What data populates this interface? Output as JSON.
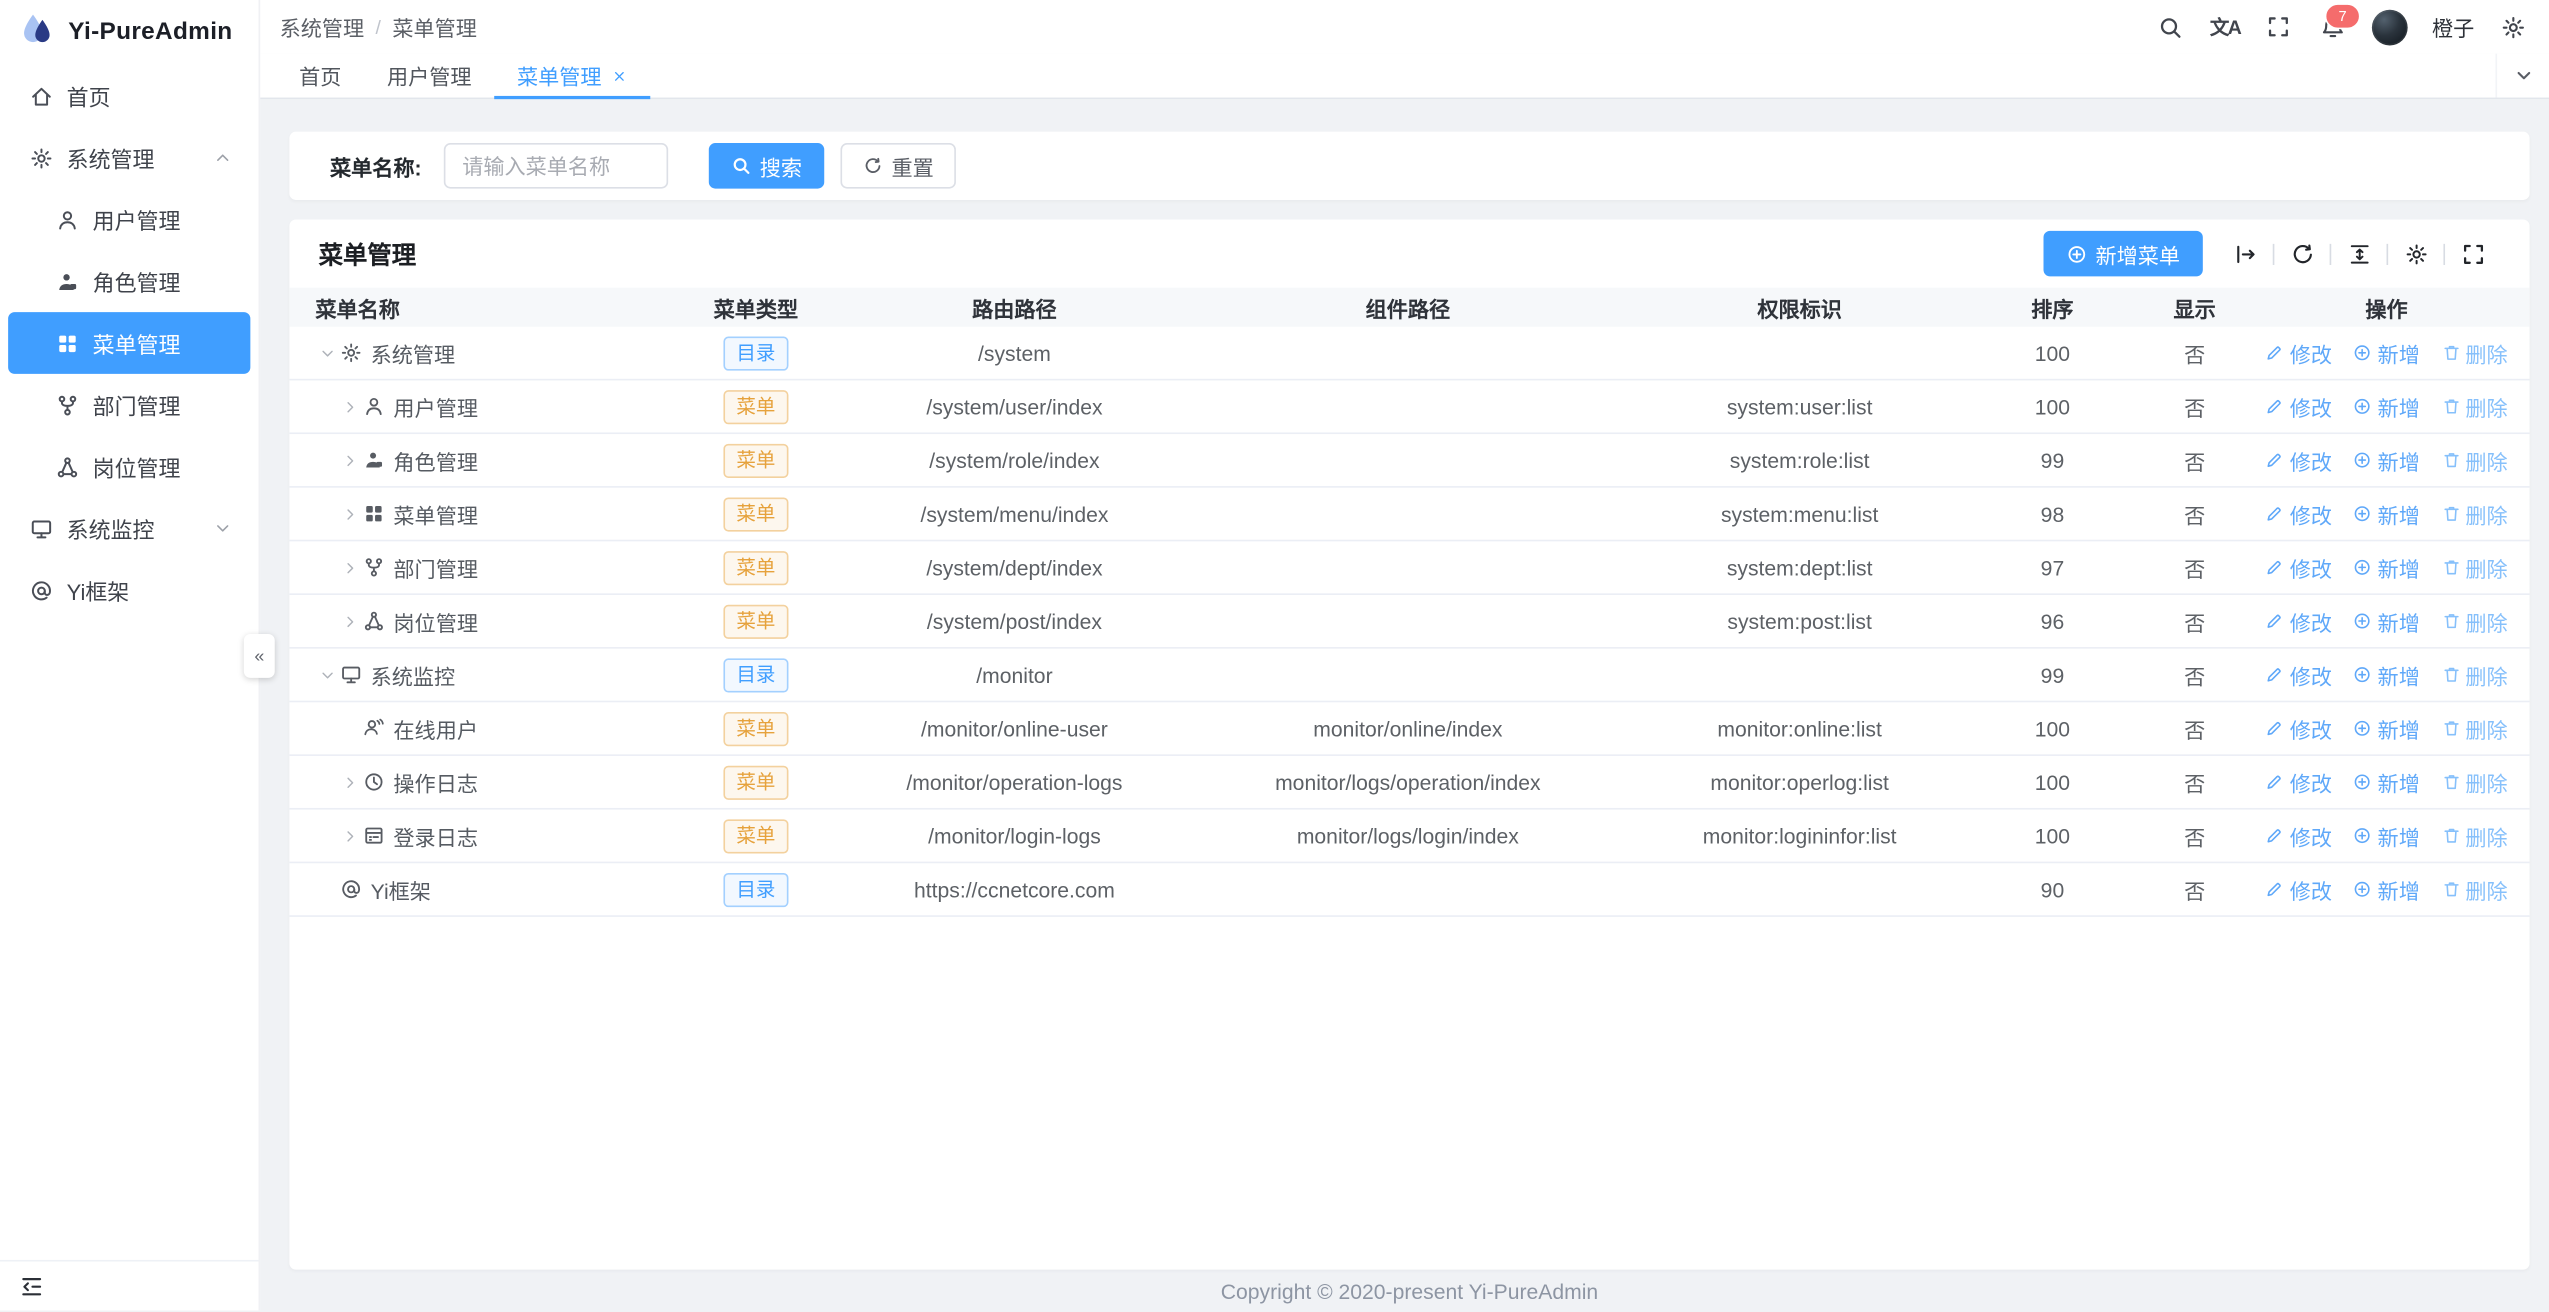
{
  "app": {
    "title": "Yi-PureAdmin"
  },
  "colors": {
    "primary": "#409eff",
    "warning": "#e6a23c",
    "badge_red": "#f56c6c",
    "content_bg": "#f0f2f5",
    "sidebar_active_bg": "#409eff"
  },
  "sidebar": {
    "items": [
      {
        "key": "home",
        "label": "首页",
        "icon": "home-icon",
        "level": 0
      },
      {
        "key": "system-mgmt",
        "label": "系统管理",
        "icon": "gear-icon",
        "level": 0,
        "chevron": "up"
      },
      {
        "key": "user-mgmt",
        "label": "用户管理",
        "icon": "user-icon",
        "level": 1
      },
      {
        "key": "role-mgmt",
        "label": "角色管理",
        "icon": "role-icon",
        "level": 1
      },
      {
        "key": "menu-mgmt",
        "label": "菜单管理",
        "icon": "menu-grid-icon",
        "level": 1,
        "active": true
      },
      {
        "key": "dept-mgmt",
        "label": "部门管理",
        "icon": "dept-icon",
        "level": 1
      },
      {
        "key": "post-mgmt",
        "label": "岗位管理",
        "icon": "post-icon",
        "level": 1
      },
      {
        "key": "system-monitor",
        "label": "系统监控",
        "icon": "monitor-icon",
        "level": 0,
        "chevron": "down"
      },
      {
        "key": "yi-framework",
        "label": "Yi框架",
        "icon": "at-icon",
        "level": 0
      }
    ],
    "collapse_glyph": "«"
  },
  "header": {
    "breadcrumb": [
      "系统管理",
      "菜单管理"
    ],
    "separator": "/",
    "username": "橙子",
    "badge": "7",
    "translate_glyph": "文A"
  },
  "tabs": [
    {
      "key": "home",
      "label": "首页"
    },
    {
      "key": "user-mgmt",
      "label": "用户管理"
    },
    {
      "key": "menu-mgmt",
      "label": "菜单管理",
      "active": true,
      "closable": true
    }
  ],
  "search": {
    "label": "菜单名称:",
    "placeholder": "请输入菜单名称",
    "value": "",
    "search_label": "搜索",
    "reset_label": "重置"
  },
  "table_card": {
    "title": "菜单管理",
    "add_label": "新增菜单"
  },
  "table": {
    "columns": [
      "菜单名称",
      "菜单类型",
      "路由路径",
      "组件路径",
      "权限标识",
      "排序",
      "显示",
      "操作"
    ],
    "actions": {
      "edit": "修改",
      "add": "新增",
      "delete": "删除"
    },
    "rows": [
      {
        "name": "系统管理",
        "icon": "gear-icon",
        "level": 0,
        "arrow": "down",
        "type": "目录",
        "type_kind": "directory",
        "route": "/system",
        "component": "",
        "perms": "",
        "sort": "100",
        "visible": "否"
      },
      {
        "name": "用户管理",
        "icon": "user-icon",
        "level": 1,
        "arrow": "right",
        "type": "菜单",
        "type_kind": "menu",
        "route": "/system/user/index",
        "component": "",
        "perms": "system:user:list",
        "sort": "100",
        "visible": "否"
      },
      {
        "name": "角色管理",
        "icon": "role-icon",
        "level": 1,
        "arrow": "right",
        "type": "菜单",
        "type_kind": "menu",
        "route": "/system/role/index",
        "component": "",
        "perms": "system:role:list",
        "sort": "99",
        "visible": "否"
      },
      {
        "name": "菜单管理",
        "icon": "menu-grid-icon",
        "level": 1,
        "arrow": "right",
        "type": "菜单",
        "type_kind": "menu",
        "route": "/system/menu/index",
        "component": "",
        "perms": "system:menu:list",
        "sort": "98",
        "visible": "否"
      },
      {
        "name": "部门管理",
        "icon": "dept-icon",
        "level": 1,
        "arrow": "right",
        "type": "菜单",
        "type_kind": "menu",
        "route": "/system/dept/index",
        "component": "",
        "perms": "system:dept:list",
        "sort": "97",
        "visible": "否"
      },
      {
        "name": "岗位管理",
        "icon": "post-icon",
        "level": 1,
        "arrow": "right",
        "type": "菜单",
        "type_kind": "menu",
        "route": "/system/post/index",
        "component": "",
        "perms": "system:post:list",
        "sort": "96",
        "visible": "否"
      },
      {
        "name": "系统监控",
        "icon": "monitor-icon",
        "level": 0,
        "arrow": "down",
        "type": "目录",
        "type_kind": "directory",
        "route": "/monitor",
        "component": "",
        "perms": "",
        "sort": "99",
        "visible": "否"
      },
      {
        "name": "在线用户",
        "icon": "online-user-icon",
        "level": 1,
        "arrow": "none",
        "type": "菜单",
        "type_kind": "menu",
        "route": "/monitor/online-user",
        "component": "monitor/online/index",
        "perms": "monitor:online:list",
        "sort": "100",
        "visible": "否"
      },
      {
        "name": "操作日志",
        "icon": "clock-icon",
        "level": 1,
        "arrow": "right",
        "type": "菜单",
        "type_kind": "menu",
        "route": "/monitor/operation-logs",
        "component": "monitor/logs/operation/index",
        "perms": "monitor:operlog:list",
        "sort": "100",
        "visible": "否"
      },
      {
        "name": "登录日志",
        "icon": "login-log-icon",
        "level": 1,
        "arrow": "right",
        "type": "菜单",
        "type_kind": "menu",
        "route": "/monitor/login-logs",
        "component": "monitor/logs/login/index",
        "perms": "monitor:logininfor:list",
        "sort": "100",
        "visible": "否"
      },
      {
        "name": "Yi框架",
        "icon": "at-icon",
        "level": 0,
        "arrow": "none",
        "type": "目录",
        "type_kind": "directory",
        "route": "https://ccnetcore.com",
        "component": "",
        "perms": "",
        "sort": "90",
        "visible": "否"
      }
    ]
  },
  "footer": {
    "copyright": "Copyright © 2020-present Yi-PureAdmin"
  }
}
